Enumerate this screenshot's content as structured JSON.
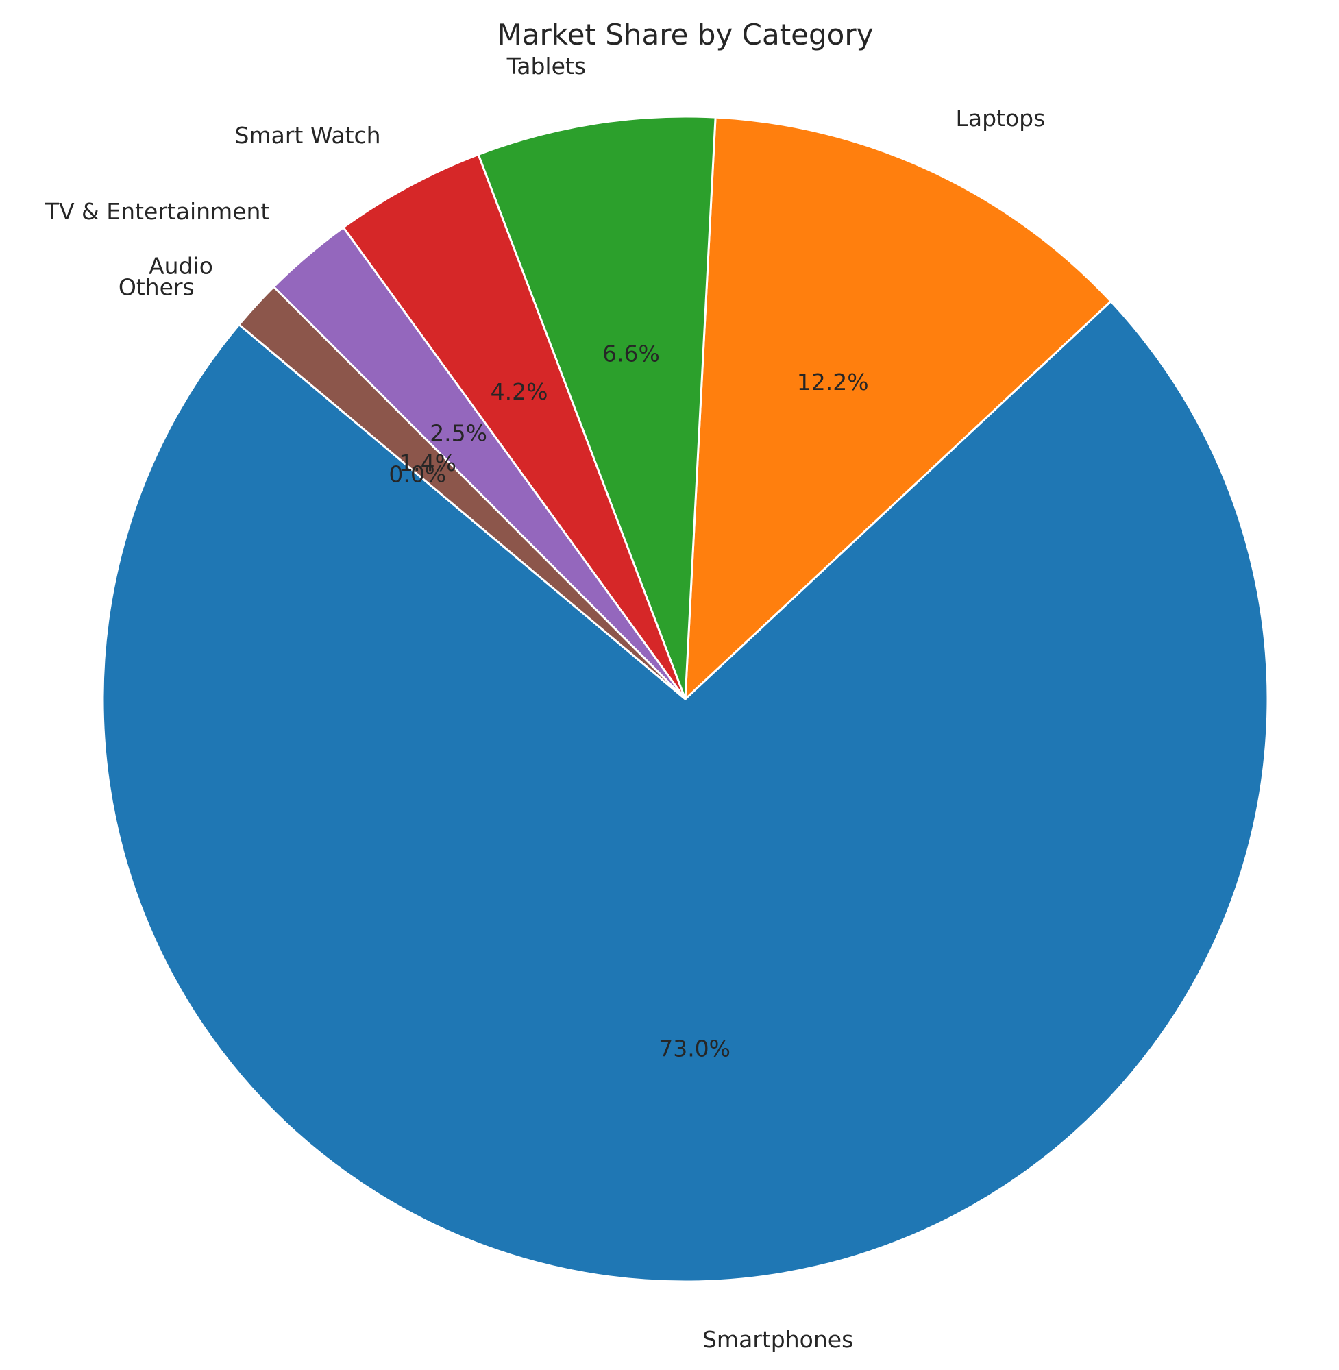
{
  "chart_data": {
    "type": "pie",
    "title": "Market Share by Category",
    "categories": [
      "Smartphones",
      "Laptops",
      "Tablets",
      "Smart Watch",
      "TV & Entertainment",
      "Audio",
      "Others"
    ],
    "values": [
      73.0,
      12.2,
      6.6,
      4.2,
      2.5,
      1.4,
      0.0
    ],
    "value_labels": [
      "73.0%",
      "12.2%",
      "6.6%",
      "4.2%",
      "2.5%",
      "1.4%",
      "0.0%"
    ],
    "colors": [
      "#1f77b4",
      "#ff7f0e",
      "#2ca02c",
      "#d62728",
      "#9467bd",
      "#8c564b",
      "#e377c2"
    ],
    "start_angle_deg": 140,
    "direction": "counterclockwise",
    "legend": "none"
  }
}
